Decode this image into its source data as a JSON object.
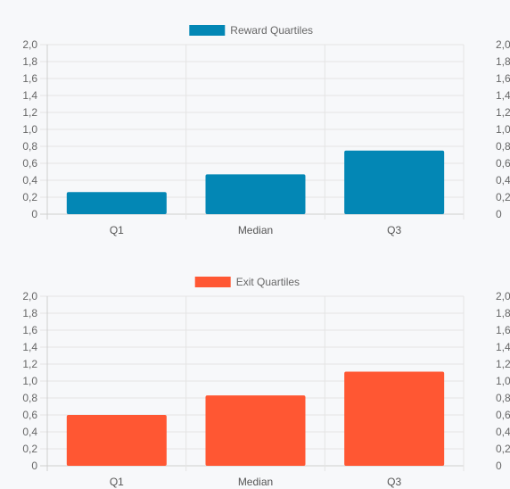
{
  "chart_data": [
    {
      "type": "bar",
      "categories": [
        "Q1",
        "Median",
        "Q3"
      ],
      "series": [
        {
          "name": "Reward Quartiles",
          "values": [
            0.26,
            0.47,
            0.75
          ],
          "color": "#0387b5"
        }
      ],
      "y_ticks": [
        "2,0",
        "1,8",
        "1,6",
        "1,4",
        "1,2",
        "1,0",
        "0,8",
        "0,6",
        "0,4",
        "0,2",
        "0"
      ],
      "right_y_ticks": [
        "2,0",
        "1,8",
        "1,6",
        "1,4",
        "1,2",
        "1,0",
        "0,8",
        "0,6",
        "0,4",
        "0,2",
        "0"
      ],
      "ylim": [
        0,
        2.0
      ],
      "legend": "top",
      "grid": true
    },
    {
      "type": "bar",
      "categories": [
        "Q1",
        "Median",
        "Q3"
      ],
      "series": [
        {
          "name": "Exit Quartiles",
          "values": [
            0.6,
            0.83,
            1.11
          ],
          "color": "#ff5733"
        }
      ],
      "y_ticks": [
        "2,0",
        "1,8",
        "1,6",
        "1,4",
        "1,2",
        "1,0",
        "0,8",
        "0,6",
        "0,4",
        "0,2",
        "0"
      ],
      "right_y_ticks": [
        "2,0",
        "1,8",
        "1,6",
        "1,4",
        "1,2",
        "1,0",
        "0,8",
        "0,6",
        "0,4",
        "0,2",
        "0"
      ],
      "ylim": [
        0,
        2.0
      ],
      "legend": "top",
      "grid": true
    }
  ]
}
